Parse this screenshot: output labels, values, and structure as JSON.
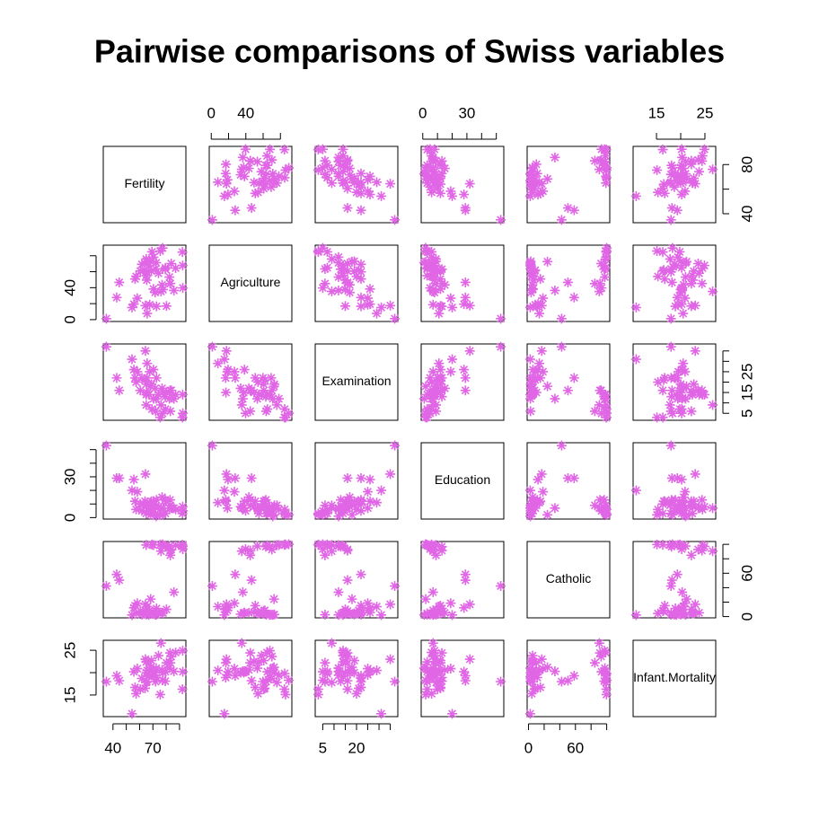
{
  "chart_data": {
    "type": "pairs",
    "title": "Pairwise comparisons of Swiss variables",
    "color": "#e066e6",
    "variables": [
      {
        "name": "Fertility",
        "lim": [
          32.7,
          94.8
        ],
        "values": [
          80.2,
          83.1,
          92.5,
          85.8,
          76.9,
          76.1,
          83.8,
          92.4,
          82.4,
          82.9,
          87.1,
          64.1,
          66.9,
          68.9,
          61.7,
          68.3,
          71.7,
          55.7,
          54.3,
          65.1,
          65.5,
          65.0,
          56.6,
          57.4,
          72.5,
          74.2,
          72.0,
          60.5,
          58.3,
          65.4,
          75.5,
          69.3,
          77.3,
          70.5,
          79.4,
          65.0,
          92.2,
          79.3,
          70.4,
          65.7,
          72.7,
          64.4,
          77.6,
          67.6,
          35.0,
          44.7,
          42.8
        ],
        "xticks": [
          40,
          {
            "value": 50,
            "label": null
          },
          {
            "value": 60,
            "label": null
          },
          70,
          {
            "value": 80,
            "label": null
          },
          {
            "value": 90,
            "label": null
          }
        ],
        "yticks": [
          40,
          {
            "value": 60,
            "label": null
          },
          80
        ]
      },
      {
        "name": "Agriculture",
        "lim": [
          -2.34,
          93.24
        ],
        "values": [
          17.0,
          45.1,
          39.7,
          36.5,
          43.5,
          35.3,
          70.2,
          67.8,
          53.3,
          45.2,
          64.5,
          62.0,
          67.5,
          60.7,
          69.3,
          72.6,
          34.0,
          19.4,
          15.2,
          73.0,
          59.8,
          55.1,
          50.9,
          54.1,
          71.2,
          58.1,
          63.5,
          60.8,
          26.8,
          49.5,
          85.9,
          84.9,
          89.7,
          78.2,
          64.9,
          75.9,
          84.6,
          63.1,
          38.4,
          7.7,
          16.7,
          17.6,
          37.6,
          18.7,
          1.2,
          46.6,
          27.7
        ],
        "xticks": [
          0,
          {
            "value": 20,
            "label": null
          },
          40,
          {
            "value": 60,
            "label": null
          },
          {
            "value": 80,
            "label": null
          }
        ],
        "yticks": [
          0,
          {
            "value": 20,
            "label": null
          },
          40,
          {
            "value": 60,
            "label": null
          },
          {
            "value": 80,
            "label": null
          }
        ]
      },
      {
        "name": "Examination",
        "lim": [
          1.64,
          38.36
        ],
        "values": [
          15,
          6,
          5,
          12,
          17,
          9,
          16,
          14,
          12,
          16,
          14,
          21,
          14,
          19,
          22,
          18,
          17,
          26,
          31,
          19,
          22,
          14,
          22,
          20,
          12,
          14,
          6,
          16,
          25,
          15,
          3,
          7,
          5,
          12,
          7,
          9,
          3,
          13,
          26,
          29,
          22,
          35,
          15,
          25,
          37,
          16,
          22
        ],
        "xticks": [
          5,
          {
            "value": 10,
            "label": null
          },
          {
            "value": 15,
            "label": null
          },
          20,
          {
            "value": 25,
            "label": null
          },
          {
            "value": 30,
            "label": null
          },
          {
            "value": 35,
            "label": null
          }
        ],
        "yticks": [
          5,
          {
            "value": 10,
            "label": null
          },
          15,
          {
            "value": 20,
            "label": null
          },
          25,
          {
            "value": 30,
            "label": null
          },
          {
            "value": 35,
            "label": null
          }
        ]
      },
      {
        "name": "Education",
        "lim": [
          -1.08,
          55.08
        ],
        "values": [
          12,
          9,
          5,
          7,
          15,
          7,
          7,
          8,
          7,
          13,
          6,
          12,
          7,
          12,
          5,
          2,
          8,
          28,
          20,
          9,
          10,
          3,
          12,
          6,
          1,
          8,
          3,
          10,
          19,
          8,
          2,
          6,
          2,
          6,
          3,
          9,
          3,
          13,
          12,
          11,
          13,
          32,
          7,
          7,
          53,
          29,
          29
        ],
        "xticks": [
          0,
          {
            "value": 10,
            "label": null
          },
          {
            "value": 20,
            "label": null
          },
          30,
          {
            "value": 40,
            "label": null
          },
          {
            "value": 50,
            "label": null
          }
        ],
        "yticks": [
          0,
          {
            "value": 10,
            "label": null
          },
          {
            "value": 20,
            "label": null
          },
          30,
          {
            "value": 40,
            "label": null
          },
          {
            "value": 50,
            "label": null
          }
        ]
      },
      {
        "name": "Catholic",
        "lim": [
          -1.76,
          103.91
        ],
        "values": [
          9.96,
          84.84,
          93.4,
          33.77,
          5.16,
          90.57,
          92.85,
          97.16,
          97.67,
          91.38,
          98.61,
          8.52,
          2.27,
          4.43,
          2.82,
          24.2,
          3.3,
          12.11,
          2.15,
          2.84,
          5.23,
          4.52,
          15.14,
          4.2,
          2.4,
          5.23,
          2.56,
          7.72,
          18.46,
          6.1,
          99.71,
          99.68,
          100.0,
          98.96,
          98.22,
          99.06,
          99.46,
          96.83,
          5.62,
          13.79,
          11.22,
          16.92,
          4.97,
          8.65,
          42.34,
          50.43,
          58.33
        ],
        "xticks": [
          0,
          {
            "value": 20,
            "label": null
          },
          {
            "value": 40,
            "label": null
          },
          60,
          {
            "value": 80,
            "label": null
          },
          {
            "value": 100,
            "label": null
          }
        ],
        "yticks": [
          0,
          {
            "value": 20,
            "label": null
          },
          {
            "value": 40,
            "label": null
          },
          60,
          {
            "value": 80,
            "label": null
          },
          {
            "value": 100,
            "label": null
          }
        ]
      },
      {
        "name": "Infant.Mortality",
        "lim": [
          10.17,
          27.23
        ],
        "values": [
          22.2,
          22.2,
          20.2,
          20.3,
          20.6,
          26.6,
          23.6,
          24.9,
          21.0,
          24.4,
          24.5,
          16.5,
          19.1,
          22.7,
          18.7,
          21.2,
          20.0,
          20.2,
          10.8,
          20.0,
          18.0,
          22.4,
          16.7,
          15.3,
          21.0,
          23.8,
          18.0,
          16.3,
          20.9,
          22.5,
          15.1,
          19.8,
          18.3,
          19.4,
          20.2,
          17.8,
          16.3,
          18.1,
          20.3,
          20.5,
          18.9,
          23.0,
          20.0,
          19.5,
          18.0,
          18.2,
          19.3
        ],
        "xticks": [
          15,
          {
            "value": 20,
            "label": null
          },
          25
        ],
        "yticks": [
          15,
          {
            "value": 20,
            "label": null
          },
          25
        ]
      }
    ]
  }
}
